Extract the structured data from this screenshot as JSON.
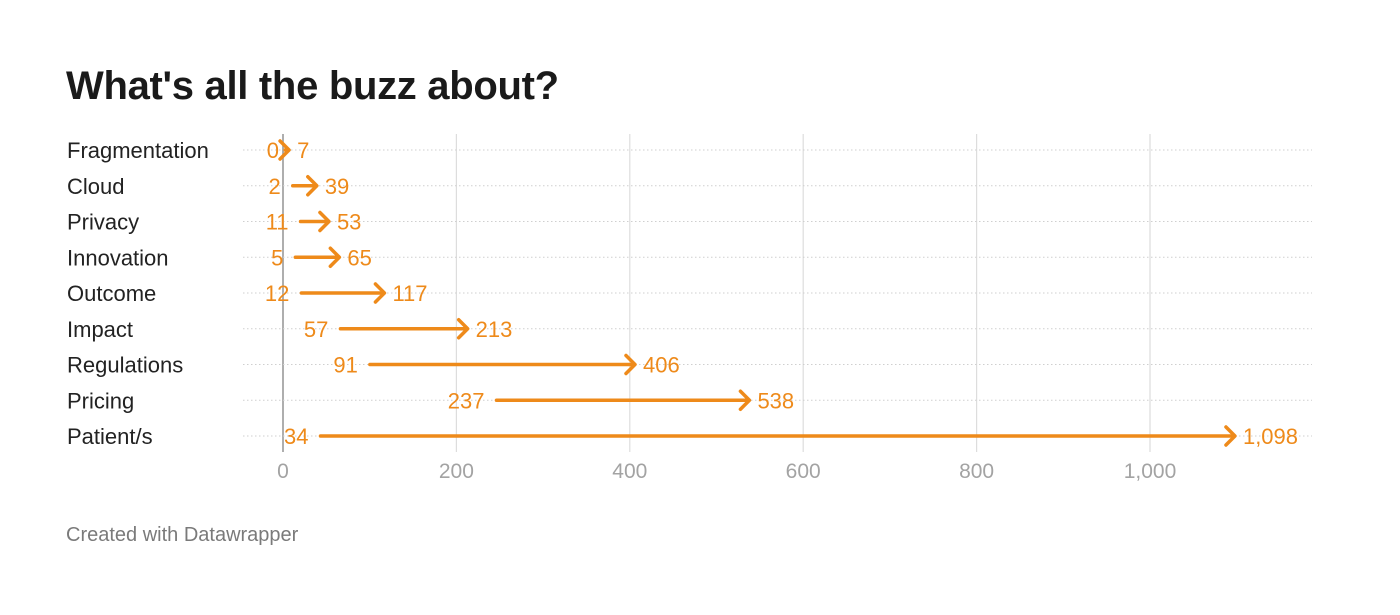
{
  "title": "What's all the buzz about?",
  "footer": "Created with Datawrapper",
  "colors": {
    "arrow": "#ee8a1a",
    "grid": "#dddddd",
    "row_line": "#cfcfcf",
    "tick_text": "#a3a3a3"
  },
  "chart_data": {
    "type": "arrow-plot",
    "title": "What's all the buzz about?",
    "xlim": [
      0,
      1150
    ],
    "x_ticks": [
      0,
      200,
      400,
      600,
      800,
      1000
    ],
    "x_tick_labels": [
      "0",
      "200",
      "400",
      "600",
      "800",
      "1,000"
    ],
    "grid": true,
    "rows": [
      {
        "label": "Fragmentation",
        "start": 0,
        "end": 7,
        "start_label": "0",
        "end_label": "7"
      },
      {
        "label": "Cloud",
        "start": 2,
        "end": 39,
        "start_label": "2",
        "end_label": "39"
      },
      {
        "label": "Privacy",
        "start": 11,
        "end": 53,
        "start_label": "11",
        "end_label": "53"
      },
      {
        "label": "Innovation",
        "start": 5,
        "end": 65,
        "start_label": "5",
        "end_label": "65"
      },
      {
        "label": "Outcome",
        "start": 12,
        "end": 117,
        "start_label": "12",
        "end_label": "117"
      },
      {
        "label": "Impact",
        "start": 57,
        "end": 213,
        "start_label": "57",
        "end_label": "213"
      },
      {
        "label": "Regulations",
        "start": 91,
        "end": 406,
        "start_label": "91",
        "end_label": "406"
      },
      {
        "label": "Pricing",
        "start": 237,
        "end": 538,
        "start_label": "237",
        "end_label": "538"
      },
      {
        "label": "Patient/s",
        "start": 34,
        "end": 1098,
        "start_label": "34",
        "end_label": "1,098"
      }
    ]
  }
}
